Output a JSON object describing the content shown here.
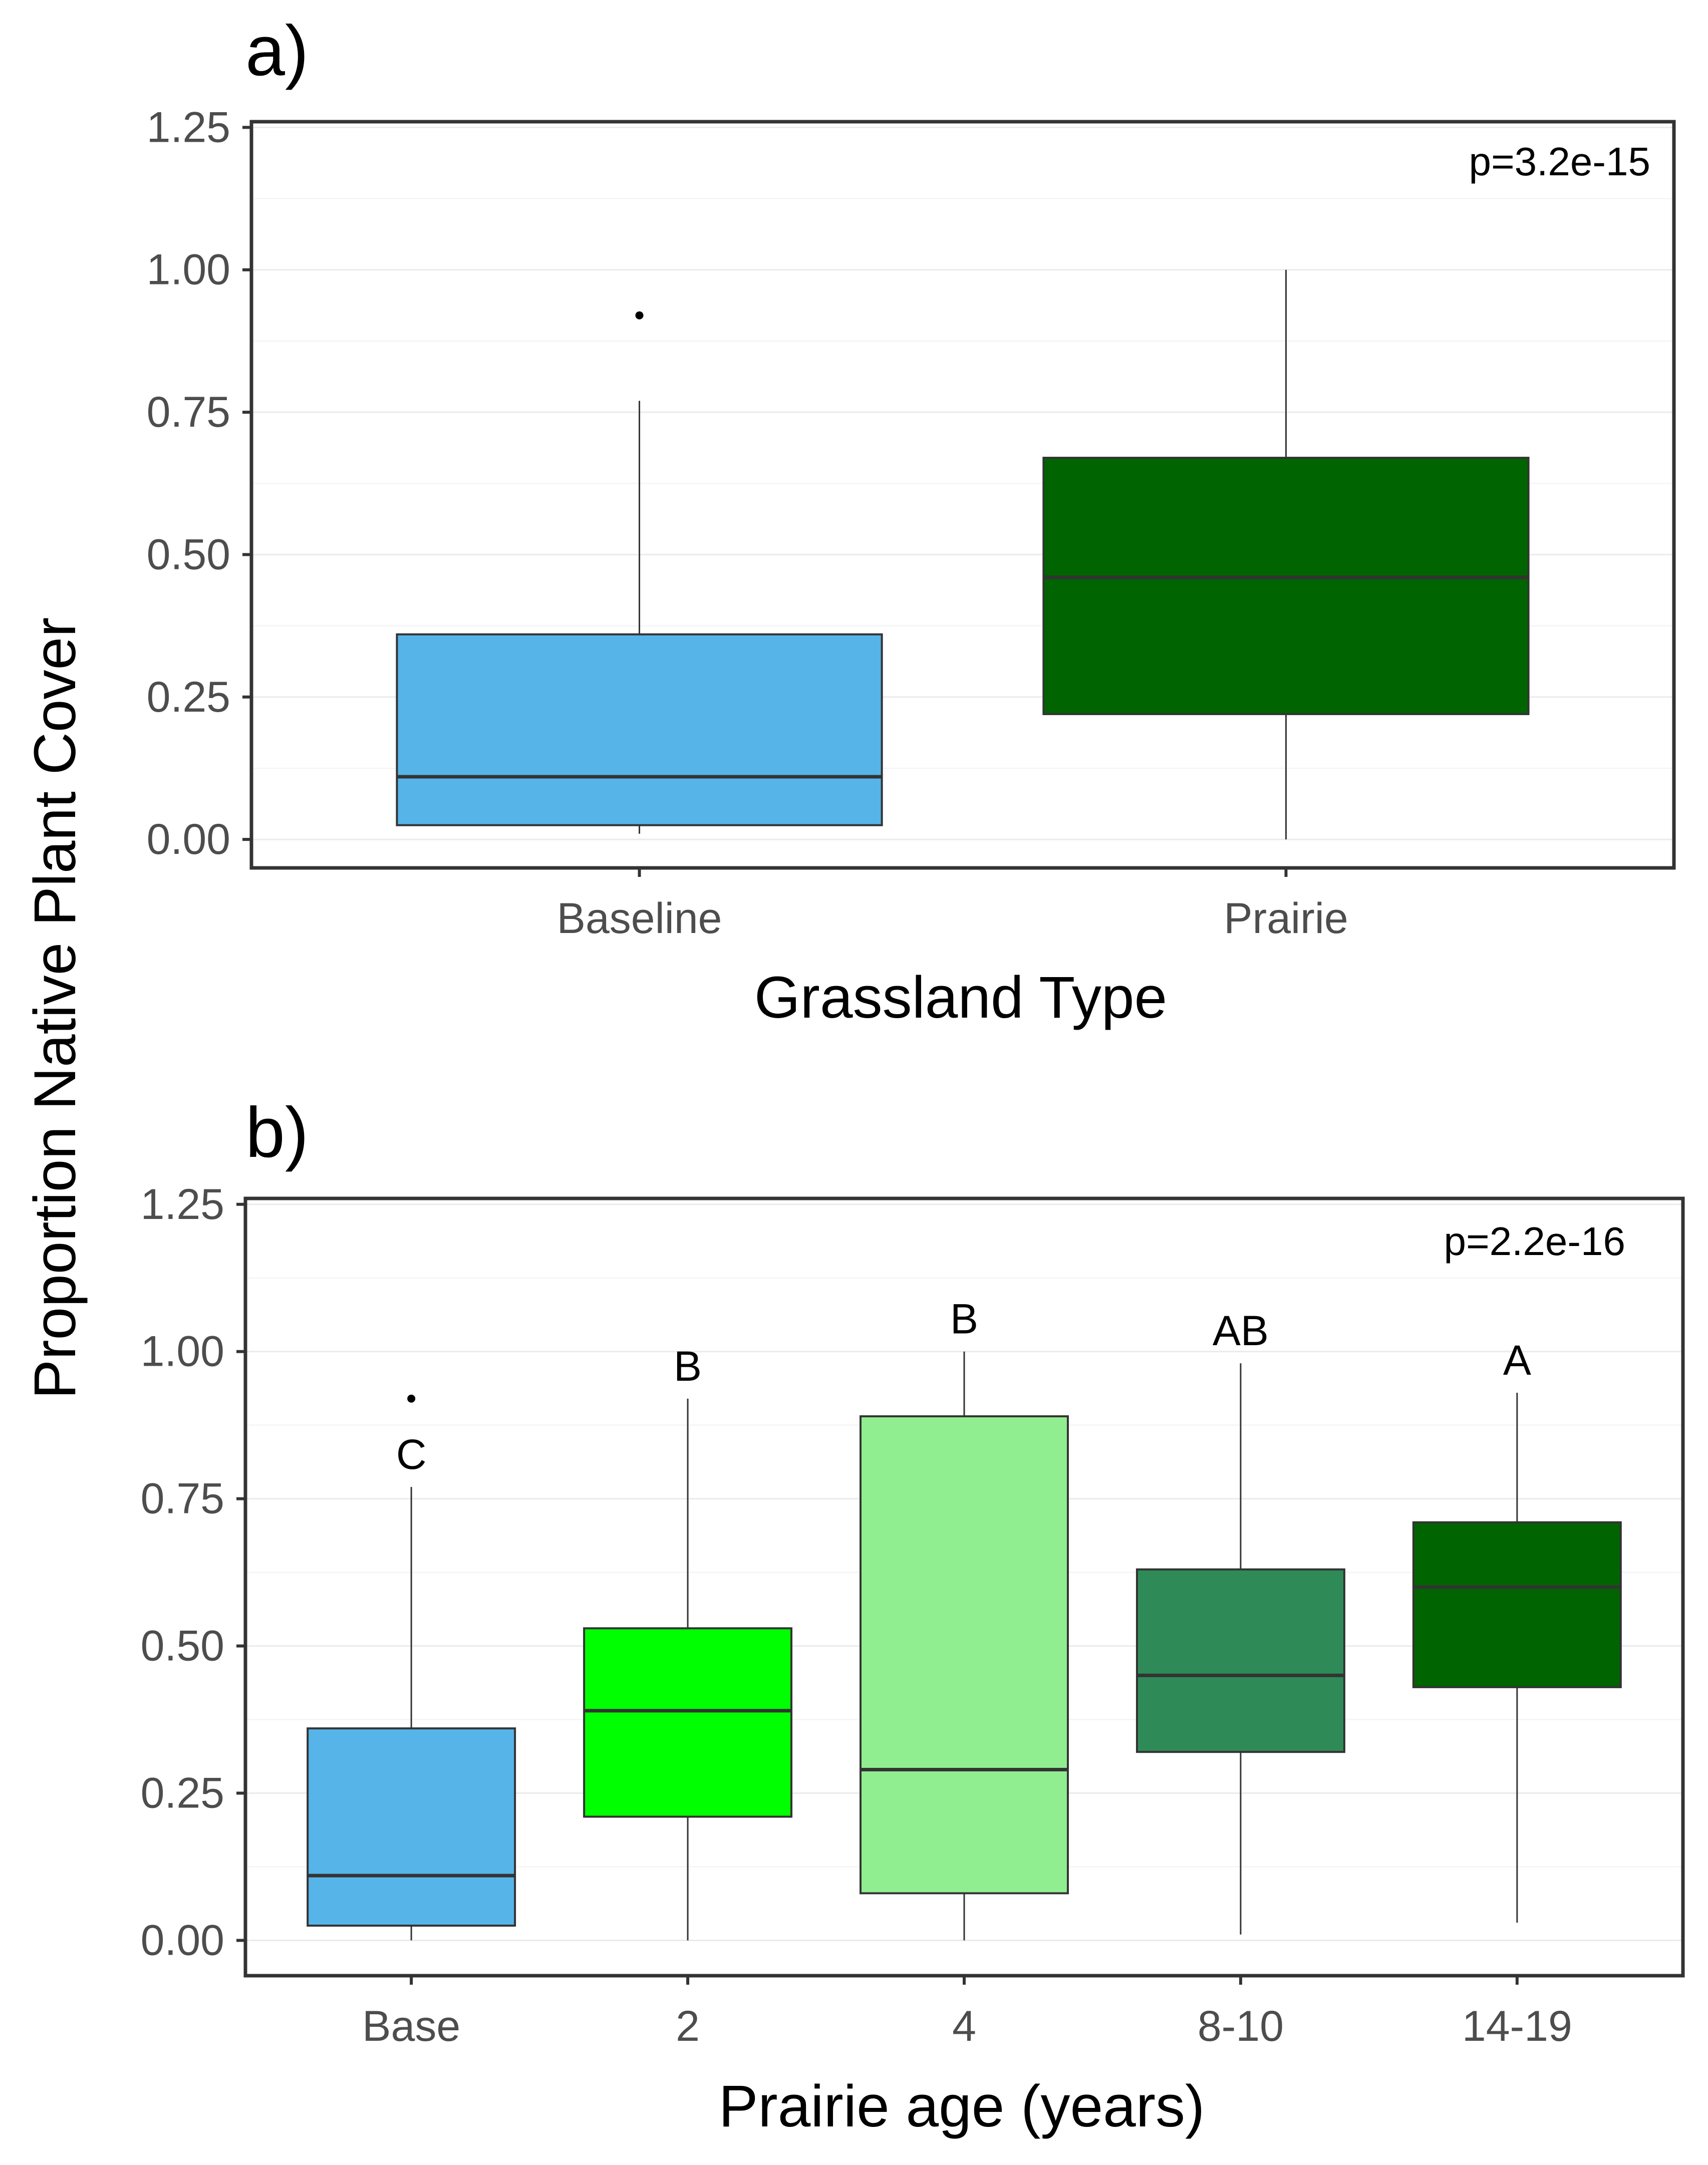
{
  "figure": {
    "y_axis_title": "Proportion Native Plant Cover",
    "colors": {
      "baseline": "#56B4E9",
      "prairie": "#006400",
      "age_2": "#00FF00",
      "age_4": "#90EE90",
      "age_8_10": "#2E8B57",
      "age_14_19": "#006400",
      "gridline": "#ebebeb",
      "median": "#333333",
      "border": "#333333"
    }
  },
  "chart_data": [
    {
      "type": "box",
      "panel_label": "a)",
      "title": "",
      "xlabel": "Grassland Type",
      "ylabel": "Proportion Native Plant Cover",
      "ylim": [
        -0.05,
        1.26
      ],
      "yticks": [
        "0.00",
        "0.25",
        "0.50",
        "0.75",
        "1.00",
        "1.25"
      ],
      "ytick_values": [
        0,
        0.25,
        0.5,
        0.75,
        1.0,
        1.25
      ],
      "annotation": "p=3.2e-15",
      "categories": [
        "Baseline",
        "Prairie"
      ],
      "boxes": [
        {
          "category": "Baseline",
          "color_key": "baseline",
          "min": 0.01,
          "q1": 0.025,
          "median": 0.11,
          "q3": 0.36,
          "max": 0.77,
          "outliers": [
            0.92
          ],
          "letter": ""
        },
        {
          "category": "Prairie",
          "color_key": "prairie",
          "min": 0.0,
          "q1": 0.22,
          "median": 0.46,
          "q3": 0.67,
          "max": 1.0,
          "outliers": [],
          "letter": ""
        }
      ]
    },
    {
      "type": "box",
      "panel_label": "b)",
      "title": "",
      "xlabel": "Prairie age (years)",
      "ylabel": "Proportion Native Plant Cover",
      "ylim": [
        -0.06,
        1.26
      ],
      "yticks": [
        "0.00",
        "0.25",
        "0.50",
        "0.75",
        "1.00",
        "1.25"
      ],
      "ytick_values": [
        0,
        0.25,
        0.5,
        0.75,
        1.0,
        1.25
      ],
      "annotation": "p=2.2e-16",
      "categories": [
        "Base",
        "2",
        "4",
        "8-10",
        "14-19"
      ],
      "boxes": [
        {
          "category": "Base",
          "color_key": "baseline",
          "min": 0.0,
          "q1": 0.025,
          "median": 0.11,
          "q3": 0.36,
          "max": 0.77,
          "outliers": [
            0.92
          ],
          "letter": "C"
        },
        {
          "category": "2",
          "color_key": "age_2",
          "min": 0.0,
          "q1": 0.21,
          "median": 0.39,
          "q3": 0.53,
          "max": 0.92,
          "outliers": [],
          "letter": "B"
        },
        {
          "category": "4",
          "color_key": "age_4",
          "min": 0.0,
          "q1": 0.08,
          "median": 0.29,
          "q3": 0.89,
          "max": 1.0,
          "outliers": [],
          "letter": "B"
        },
        {
          "category": "8-10",
          "color_key": "age_8_10",
          "min": 0.01,
          "q1": 0.32,
          "median": 0.45,
          "q3": 0.63,
          "max": 0.98,
          "outliers": [],
          "letter": "AB"
        },
        {
          "category": "14-19",
          "color_key": "age_14_19",
          "min": 0.03,
          "q1": 0.43,
          "median": 0.6,
          "q3": 0.71,
          "max": 0.93,
          "outliers": [],
          "letter": "A"
        }
      ]
    }
  ]
}
